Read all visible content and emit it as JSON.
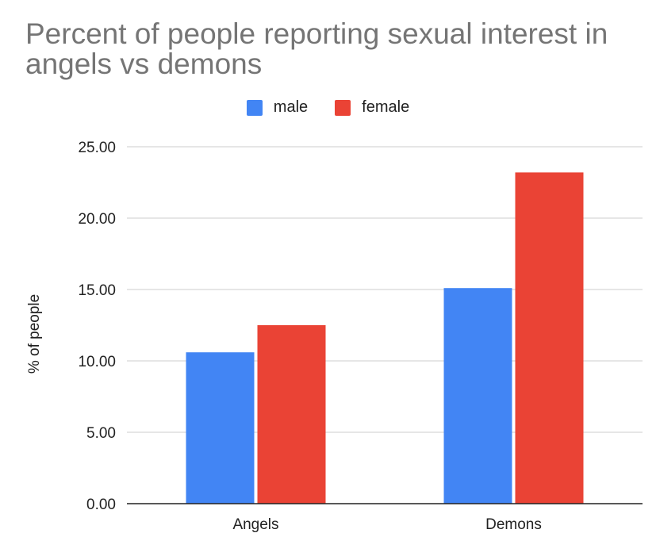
{
  "chart_data": {
    "type": "bar",
    "title": "Percent of people reporting sexual interest in angels vs demons",
    "xlabel": "",
    "ylabel": "% of people",
    "categories": [
      "Angels",
      "Demons"
    ],
    "series": [
      {
        "name": "male",
        "color": "#4285F4",
        "values": [
          10.6,
          15.1
        ]
      },
      {
        "name": "female",
        "color": "#EA4335",
        "values": [
          12.5,
          23.2
        ]
      }
    ],
    "ylim": [
      0,
      25
    ],
    "yticks": [
      "0.00",
      "5.00",
      "10.00",
      "15.00",
      "20.00",
      "25.00"
    ],
    "grid": true,
    "legend": "top-center"
  }
}
